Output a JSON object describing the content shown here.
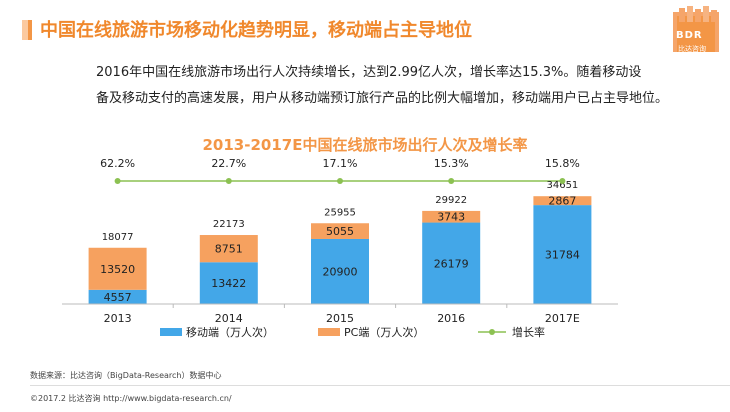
{
  "header": {
    "title": "中国在线旅游市场移动化趋势明显，移动端占主导地位",
    "logo_text": "BDR",
    "logo_sub": "比达咨询"
  },
  "intro": {
    "line1": "2016年中国在线旅游市场出行人次持续增长，达到2.99亿人次，增长率达15.3%。随着移动设",
    "line2": "备及移动支付的高速发展，用户从移动端预订旅行产品的比例大幅增加，移动端用户已占主导地位。"
  },
  "chart_data": {
    "type": "bar",
    "title": "2013-2017E中国在线旅市场出行人次及增长率",
    "categories": [
      "2013",
      "2014",
      "2015",
      "2016",
      "2017E"
    ],
    "series": [
      {
        "name": "移动端（万人次）",
        "values": [
          4557,
          13422,
          20900,
          26179,
          31784
        ],
        "color": "#43a7e8"
      },
      {
        "name": "PC端（万人次）",
        "values": [
          13520,
          8751,
          5055,
          3743,
          2867
        ],
        "color": "#f6a15f"
      }
    ],
    "totals": [
      18077,
      22173,
      25955,
      29922,
      34651
    ],
    "growth": {
      "name": "增长率",
      "values": [
        "62.2%",
        "22.7%",
        "17.1%",
        "15.3%",
        "15.8%"
      ],
      "color": "#8cc152"
    },
    "ylim": [
      0,
      36000
    ],
    "stacked": true,
    "legend": "bottom"
  },
  "footer": {
    "source": "数据来源：比达咨询（BigData-Research）数据中心",
    "copyright": "©2017.2  比达咨询  http://www.bigdata-research.cn/"
  },
  "colors": {
    "accent": "#f0882c",
    "mobile": "#43a7e8",
    "pc": "#f6a15f",
    "growth": "#8cc152"
  }
}
